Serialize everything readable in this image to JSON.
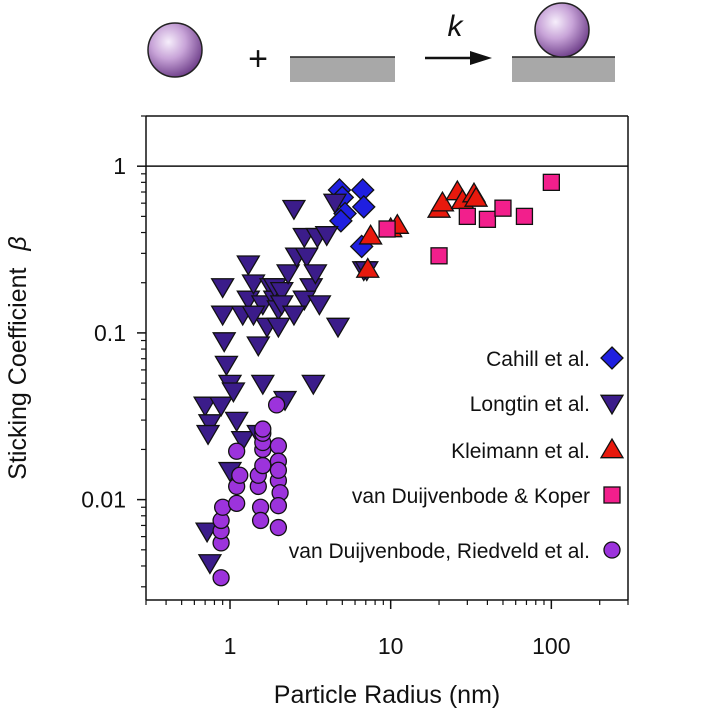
{
  "chart_data": {
    "type": "scatter",
    "xlabel": "Particle Radius (nm)",
    "ylabel": "Sticking Coefficient",
    "ylabel_symbol": "β",
    "xscale": "log",
    "yscale": "log",
    "xlim": [
      0.3,
      300
    ],
    "ylim": [
      0.0025,
      2
    ],
    "xticks": [
      1,
      10,
      100
    ],
    "xtick_labels": [
      "1",
      "10",
      "100"
    ],
    "yticks": [
      0.01,
      0.1,
      1
    ],
    "ytick_labels": [
      "0.01",
      "0.1",
      "1"
    ],
    "reference_line_y": 1,
    "grid": false,
    "legend_position": "bottom-right",
    "schematic": {
      "rate_label": "k",
      "plus_sign": "+"
    },
    "series": [
      {
        "name": "Cahill et al.",
        "marker": "diamond",
        "color": "#1f1fe0",
        "points": [
          [
            4.8,
            0.72
          ],
          [
            6.7,
            0.72
          ],
          [
            5.0,
            0.65
          ],
          [
            6.8,
            0.57
          ],
          [
            5.2,
            0.52
          ],
          [
            4.9,
            0.47
          ],
          [
            6.6,
            0.33
          ]
        ]
      },
      {
        "name": "Longtin et al.",
        "marker": "triangle-down",
        "color": "#3b1c8a",
        "points": [
          [
            0.7,
            0.037
          ],
          [
            0.75,
            0.029
          ],
          [
            0.73,
            0.025
          ],
          [
            0.72,
            0.0065
          ],
          [
            0.75,
            0.0042
          ],
          [
            0.9,
            0.19
          ],
          [
            0.9,
            0.13
          ],
          [
            0.92,
            0.09
          ],
          [
            0.95,
            0.065
          ],
          [
            0.88,
            0.037
          ],
          [
            1.0,
            0.05
          ],
          [
            1.05,
            0.045
          ],
          [
            1.0,
            0.015
          ],
          [
            1.1,
            0.03
          ],
          [
            1.2,
            0.023
          ],
          [
            1.2,
            0.13
          ],
          [
            1.3,
            0.16
          ],
          [
            1.3,
            0.26
          ],
          [
            1.4,
            0.2
          ],
          [
            1.5,
            0.085
          ],
          [
            1.5,
            0.025
          ],
          [
            1.6,
            0.15
          ],
          [
            1.7,
            0.11
          ],
          [
            1.8,
            0.19
          ],
          [
            1.9,
            0.16
          ],
          [
            1.9,
            0.19
          ],
          [
            2.0,
            0.14
          ],
          [
            2.0,
            0.11
          ],
          [
            2.1,
            0.18
          ],
          [
            2.1,
            0.15
          ],
          [
            2.2,
            0.04
          ],
          [
            2.3,
            0.23
          ],
          [
            2.5,
            0.56
          ],
          [
            2.6,
            0.29
          ],
          [
            2.9,
            0.38
          ],
          [
            3.0,
            0.29
          ],
          [
            3.2,
            0.19
          ],
          [
            3.4,
            0.23
          ],
          [
            3.5,
            0.38
          ],
          [
            3.3,
            0.05
          ],
          [
            2.9,
            0.16
          ],
          [
            3.6,
            0.15
          ],
          [
            4.0,
            0.39
          ],
          [
            4.5,
            0.61
          ],
          [
            4.7,
            0.11
          ],
          [
            6.8,
            0.24
          ],
          [
            7.1,
            0.24
          ],
          [
            1.6,
            0.05
          ],
          [
            1.4,
            0.13
          ],
          [
            2.5,
            0.13
          ]
        ]
      },
      {
        "name": "Kleimann et al.",
        "marker": "triangle-up",
        "color": "#e8190d",
        "points": [
          [
            7.2,
            0.24
          ],
          [
            7.5,
            0.38
          ],
          [
            10,
            0.42
          ],
          [
            11,
            0.44
          ],
          [
            20,
            0.55
          ],
          [
            21,
            0.6
          ],
          [
            26,
            0.7
          ],
          [
            28,
            0.62
          ],
          [
            33,
            0.68
          ],
          [
            34,
            0.64
          ]
        ]
      },
      {
        "name": "van Duijvenbode & Koper",
        "marker": "square",
        "color": "#f21f8c",
        "points": [
          [
            9.5,
            0.42
          ],
          [
            20,
            0.29
          ],
          [
            30,
            0.5
          ],
          [
            40,
            0.48
          ],
          [
            50,
            0.56
          ],
          [
            68,
            0.5
          ],
          [
            100,
            0.8
          ]
        ]
      },
      {
        "name": "van Duijvenbode, Riedveld et al.",
        "marker": "circle",
        "color": "#9c33dc",
        "points": [
          [
            0.88,
            0.0034
          ],
          [
            0.88,
            0.0055
          ],
          [
            0.88,
            0.0065
          ],
          [
            0.88,
            0.0075
          ],
          [
            0.9,
            0.009
          ],
          [
            1.1,
            0.0095
          ],
          [
            1.1,
            0.012
          ],
          [
            1.15,
            0.014
          ],
          [
            1.1,
            0.0195
          ],
          [
            1.5,
            0.012
          ],
          [
            1.5,
            0.014
          ],
          [
            1.55,
            0.009
          ],
          [
            1.55,
            0.0075
          ],
          [
            1.6,
            0.016
          ],
          [
            1.6,
            0.02
          ],
          [
            1.6,
            0.022
          ],
          [
            1.6,
            0.025
          ],
          [
            1.6,
            0.0265
          ],
          [
            1.95,
            0.037
          ],
          [
            2.0,
            0.021
          ],
          [
            2.0,
            0.017
          ],
          [
            2.0,
            0.013
          ],
          [
            2.05,
            0.011
          ],
          [
            2.0,
            0.0092
          ],
          [
            2.0,
            0.0068
          ],
          [
            2.0,
            0.015
          ]
        ]
      }
    ]
  }
}
